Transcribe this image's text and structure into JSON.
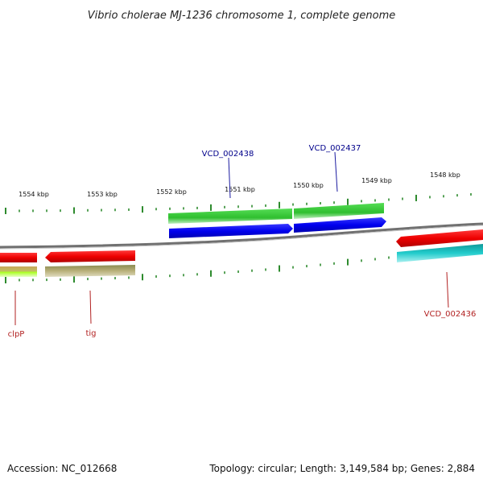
{
  "title": "Vibrio cholerae MJ-1236 chromosome 1, complete genome",
  "footer": {
    "accession": "Accession: NC_012668",
    "summary": "Topology: circular; Length: 3,149,584 bp; Genes: 2,884"
  },
  "colors": {
    "backbone": "#808080",
    "tick": "#2e8b2e",
    "forward_label": "#00008b",
    "reverse_label": "#b22222"
  },
  "ticks": [
    "1554 kbp",
    "1553 kbp",
    "1552 kbp",
    "1551 kbp",
    "1550 kbp",
    "1549 kbp",
    "1548 kbp"
  ],
  "genes": [
    {
      "name": "VCD_002438",
      "strand": "forward",
      "color": "#0000ee"
    },
    {
      "name": "VCD_002437",
      "strand": "forward",
      "color": "#0000ee"
    },
    {
      "name": "clpP",
      "strand": "reverse",
      "color": "#ee0000"
    },
    {
      "name": "tig",
      "strand": "reverse",
      "color": "#ee0000"
    },
    {
      "name": "VCD_002436",
      "strand": "reverse",
      "color": "#ee0000"
    }
  ]
}
